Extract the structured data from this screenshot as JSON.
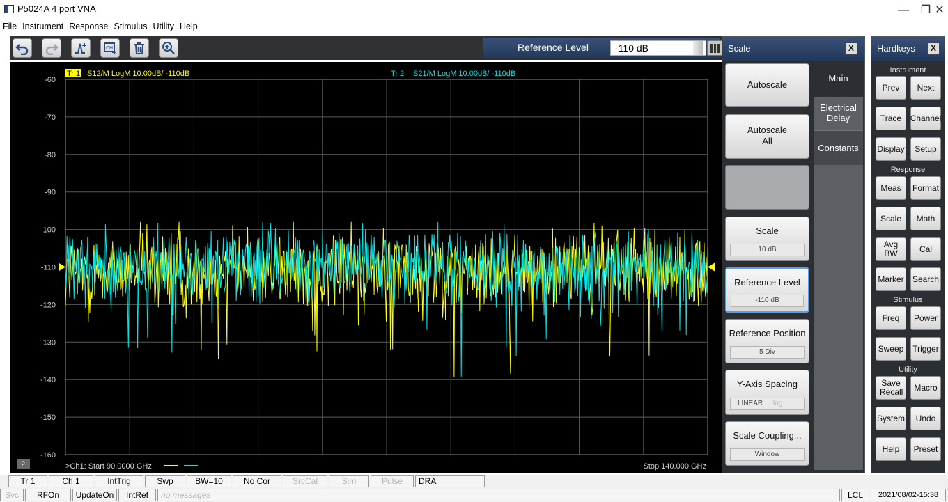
{
  "window": {
    "title": "P5024A 4 port VNA",
    "controls": [
      "—",
      "❐",
      "✕"
    ]
  },
  "menu": [
    "File",
    "Instrument",
    "Response",
    "Stimulus",
    "Utility",
    "Help"
  ],
  "toolbar": {
    "buttons": [
      "undo-icon",
      "redo-icon",
      "marker-add-icon",
      "channel-add-icon",
      "trash-icon",
      "zoom-in-icon"
    ],
    "reference_level_label": "Reference Level",
    "reference_level_value": "-110 dB"
  },
  "chart_data": {
    "type": "line",
    "trace_labels": [
      {
        "tag": "Tr 1",
        "text": "S12/M LogM 10.00dB/ -110dB",
        "color": "#ffff00"
      },
      {
        "tag": "Tr 2",
        "text": "S21/M LogM 10.00dB/ -110dB",
        "color": "#00e5e5"
      }
    ],
    "yticks": [
      -60,
      -70,
      -80,
      -90,
      -100,
      -110,
      -120,
      -130,
      -140,
      -150,
      -160
    ],
    "ylim": [
      -160,
      -60
    ],
    "xlim": [
      90,
      140
    ],
    "x_unit": "GHz",
    "start_label": ">Ch1: Start  90.0000 GHz",
    "stop_label": "Stop  140.000 GHz",
    "channel_badge": "2",
    "reference_value": -110,
    "series": [
      {
        "name": "Tr 1",
        "color": "#ffff00",
        "mean": -111,
        "noise": 5
      },
      {
        "name": "Tr 2",
        "color": "#00e5e5",
        "mean": -110,
        "noise": 4.5
      }
    ],
    "grid": true
  },
  "scale_panel": {
    "title": "Scale",
    "close": "X",
    "tabs": [
      "Main",
      "Electrical Delay",
      "Constants"
    ],
    "keys": [
      {
        "label": "Autoscale",
        "value": ""
      },
      {
        "label": "Autoscale All",
        "value": ""
      },
      {
        "label": "",
        "value": ""
      },
      {
        "label": "Scale",
        "value": "10 dB"
      },
      {
        "label": "Reference Level",
        "value": "-110 dB"
      },
      {
        "label": "Reference Position",
        "value": "5 Div"
      },
      {
        "label": "Y-Axis Spacing",
        "value_a": "LINEAR",
        "value_b": "log"
      },
      {
        "label": "Scale Coupling...",
        "value": "Window"
      }
    ]
  },
  "hardkeys": {
    "title": "Hardkeys",
    "close": "X",
    "groups": {
      "instrument": "Instrument",
      "response": "Response",
      "stimulus": "Stimulus",
      "utility": "Utility"
    },
    "keys": [
      "Prev",
      "Next",
      "Trace",
      "Channel",
      "Display",
      "Setup",
      "Meas",
      "Format",
      "Scale",
      "Math",
      "Avg BW",
      "Cal",
      "Marker",
      "Search",
      "Freq",
      "Power",
      "Sweep",
      "Trigger",
      "Save Recall",
      "Macro",
      "System",
      "Undo",
      "Help",
      "Preset"
    ]
  },
  "status_bar": {
    "row1": [
      "Tr 1",
      "Ch 1",
      "IntTrig",
      "Swp",
      "BW=10",
      "No Cor",
      "SrcCal",
      "Sim",
      "Pulse",
      "DRA"
    ],
    "row2": [
      "Svc",
      "RFOn",
      "UpdateOn",
      "IntRef",
      "no messages"
    ],
    "lcl": "LCL",
    "datetime": "2021/08/02-15:38"
  }
}
